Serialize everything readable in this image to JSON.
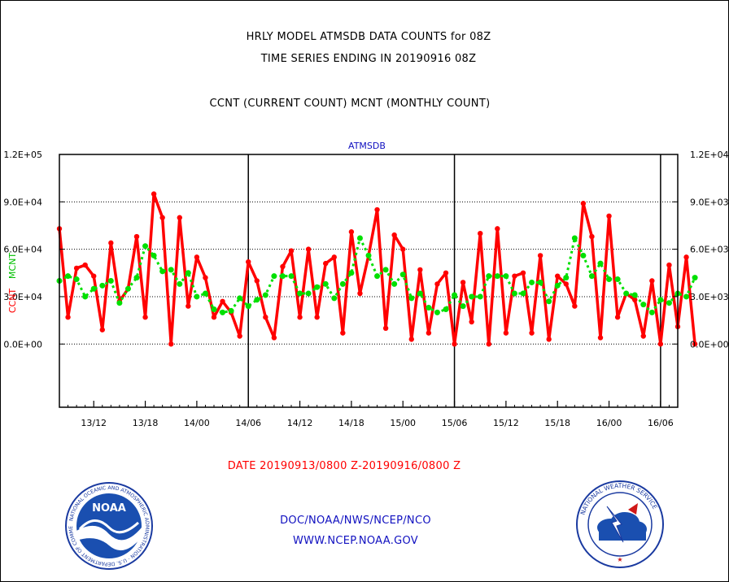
{
  "header": {
    "line1": "HRLY MODEL ATMSDB DATA COUNTS for 08Z",
    "line2": "TIME SERIES ENDING IN 20190916 08Z",
    "line3": "CCNT (CURRENT COUNT) MCNT (MONTHLY COUNT)"
  },
  "footer": {
    "date": "DATE 20190913/0800 Z-20190916/0800 Z",
    "doc": "DOC/NOAA/NWS/NCEP/NCO",
    "www": "WWW.NCEP.NOAA.GOV"
  },
  "logos": {
    "noaa_text": "NOAA",
    "noaa_ring": "NATIONAL OCEANIC AND ATMOSPHERIC ADMINISTRATION · U.S. DEPARTMENT OF COMMERCE",
    "nws_ring": "NATIONAL WEATHER SERVICE"
  },
  "colors": {
    "ccnt": "#ff0000",
    "mcnt": "#00e000",
    "grid": "#000000",
    "link": "#1010c0"
  },
  "chart_data": {
    "type": "line",
    "title": "ATMSDB",
    "x_unit": "hour",
    "x_start": "20190913/0800",
    "x_end": "20190916/0800",
    "x_range": [
      8,
      80
    ],
    "xtick_labels": [
      "13/12",
      "13/18",
      "14/00",
      "14/06",
      "14/12",
      "14/18",
      "15/00",
      "15/06",
      "15/12",
      "15/18",
      "16/00",
      "16/06"
    ],
    "xtick_hours": [
      12,
      18,
      24,
      30,
      36,
      42,
      48,
      54,
      60,
      66,
      72,
      78
    ],
    "day_boundaries": [
      30,
      54,
      78
    ],
    "left_axis": {
      "label_series": [
        "CCNT",
        "MCNT"
      ],
      "range": [
        -4000,
        12000
      ],
      "ticks": [
        0,
        3000,
        6000,
        9000,
        12000
      ],
      "tick_labels": [
        "0.0E+00",
        "3.0E+04",
        "6.0E+04",
        "9.0E+04",
        "1.2E+05"
      ]
    },
    "right_axis": {
      "ticks": [
        0,
        3000,
        6000,
        9000,
        12000
      ],
      "tick_labels": [
        "0.0E+00",
        "3.0E+03",
        "6.0E+03",
        "9.0E+03",
        "1.2E+04"
      ]
    },
    "grid": "horizontal",
    "series": [
      {
        "name": "CCNT",
        "color": "#ff0000",
        "style": "solid",
        "values": [
          7300,
          1700,
          4800,
          5000,
          4300,
          900,
          6400,
          2700,
          3500,
          6800,
          1700,
          9500,
          8000,
          0,
          8000,
          2400,
          5500,
          4200,
          1700,
          2700,
          2000,
          500,
          5200,
          4000,
          1700,
          400,
          4900,
          5900,
          1700,
          6000,
          1700,
          5100,
          5500,
          700,
          7100,
          3200,
          5600,
          8500,
          1000,
          6900,
          6000,
          300,
          4700,
          700,
          3800,
          4500,
          0,
          3900,
          1400,
          7000,
          0,
          7300,
          700,
          4300,
          4500,
          700,
          5600,
          300,
          4300,
          3800,
          2400,
          8900,
          6800,
          400,
          8100,
          1700,
          3200,
          2800,
          500,
          4000,
          0,
          5000,
          1100,
          5500,
          0
        ]
      },
      {
        "name": "MCNT",
        "color": "#00e000",
        "style": "dotted",
        "values": [
          4000,
          4300,
          4100,
          3000,
          3500,
          3700,
          4000,
          2600,
          3500,
          4200,
          6200,
          5600,
          4600,
          4700,
          3800,
          4500,
          3000,
          3200,
          2200,
          2000,
          2100,
          2900,
          2400,
          2800,
          3100,
          4300,
          4300,
          4300,
          3200,
          3200,
          3600,
          3800,
          2900,
          3800,
          4500,
          6700,
          5600,
          4300,
          4700,
          3800,
          4400,
          2900,
          3200,
          2300,
          2000,
          2200,
          3100,
          2400,
          3000,
          3000,
          4300,
          4300,
          4300,
          3200,
          3200,
          3900,
          3900,
          2700,
          3700,
          4200,
          6700,
          5600,
          4300,
          5100,
          4100,
          4100,
          3200,
          3100,
          2500,
          2000,
          2800,
          2600,
          3200,
          3000,
          4200
        ]
      }
    ]
  }
}
